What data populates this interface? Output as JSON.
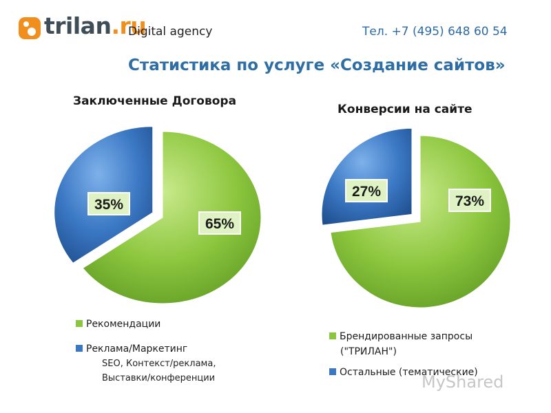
{
  "brand": {
    "logo_part1": "trilan",
    "logo_part2": ".ru",
    "tagline": "Digital agency",
    "phone": "Тел. +7 (495) 648 60 54",
    "accent_orange": "#f08e1e",
    "accent_blue": "#2e6ea4"
  },
  "page": {
    "title": "Статистика по услуге  «Создание сайтов»"
  },
  "chart_data": [
    {
      "type": "pie",
      "title": "Заключенные Договора",
      "slices": [
        {
          "label": "Рекомендации",
          "value": 65,
          "display": "65%",
          "color": "#8cc63e"
        },
        {
          "label": "Реклама/Маркетинг",
          "value": 35,
          "display": "35%",
          "color": "#3b78c4",
          "exploded": true
        }
      ],
      "legend_placement": "bottom",
      "legend_note": [
        "SEO, Контекст/реклама,",
        "Выставки/конференции"
      ]
    },
    {
      "type": "pie",
      "title": "Конверсии на сайте",
      "slices": [
        {
          "label": "Брендированные запросы",
          "label_line2": "(\"ТРИЛАН\")",
          "value": 73,
          "display": "73%",
          "color": "#8cc63e"
        },
        {
          "label": "Остальные (тематические)",
          "value": 27,
          "display": "27%",
          "color": "#3b78c4",
          "exploded": true
        }
      ],
      "legend_placement": "bottom"
    }
  ],
  "watermark": "MyShared"
}
